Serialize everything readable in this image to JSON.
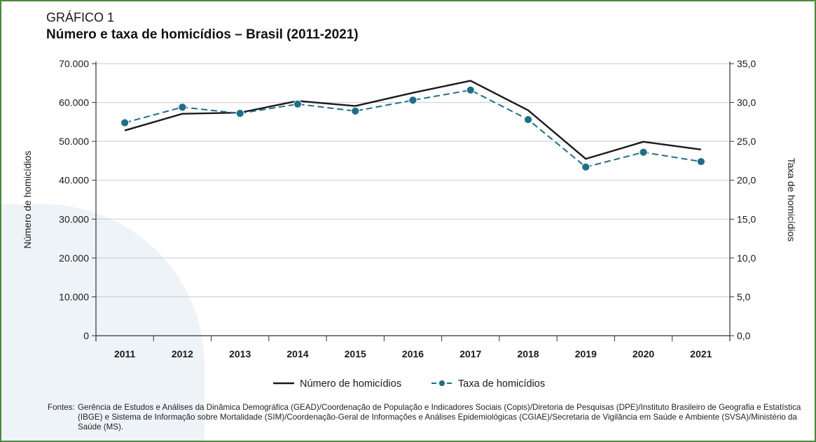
{
  "header": {
    "kicker": "GRÁFICO 1",
    "title": "Número e taxa de homicídios – Brasil (2011-2021)"
  },
  "footer": {
    "sources_label": "Fontes:",
    "sources_text": "Gerência de Estudos e Análises da Dinâmica  Demográfica (GEAD)/Coordenação de População e Indicadores Sociais (Copis)/Diretoria de Pesquisas (DPE)/Instituto Brasileiro de Geografia e Estatística (IBGE) e Sistema de Informação sobre Mortalidade (SIM)/Coordenação-Geral de Informações e Análises Epidemiológicas (CGIAE)/Secretaria de Vigilância em Saúde e Ambiente (SVSA)/Ministério da Saúde (MS)."
  },
  "chart_data": {
    "type": "line",
    "categories": [
      "2011",
      "2012",
      "2013",
      "2014",
      "2015",
      "2016",
      "2017",
      "2018",
      "2019",
      "2020",
      "2021"
    ],
    "series": [
      {
        "name": "Número de homicídios",
        "axis": "left",
        "color": "#1a1a1a",
        "style": "solid",
        "values": [
          52800,
          57100,
          57400,
          60400,
          59100,
          62500,
          65600,
          58000,
          45500,
          49900,
          47900
        ]
      },
      {
        "name": "Taxa de homicídios",
        "axis": "right",
        "color": "#1f6f86",
        "style": "dashed-with-markers",
        "values": [
          27.4,
          29.4,
          28.6,
          29.8,
          28.9,
          30.3,
          31.6,
          27.8,
          21.7,
          23.6,
          22.4
        ]
      }
    ],
    "y_left": {
      "label": "Número de homicídios",
      "ylim": [
        0,
        70000
      ],
      "ticks": [
        "0",
        "10.000",
        "20.000",
        "30.000",
        "40.000",
        "50.000",
        "60.000",
        "70.000"
      ]
    },
    "y_right": {
      "label": "Taxa de homicídios",
      "ylim": [
        0,
        35
      ],
      "ticks": [
        "0,0",
        "5,0",
        "10,0",
        "15,0",
        "20,0",
        "25,0",
        "30,0",
        "35,0"
      ]
    },
    "grid": true,
    "legend": "bottom-center"
  }
}
